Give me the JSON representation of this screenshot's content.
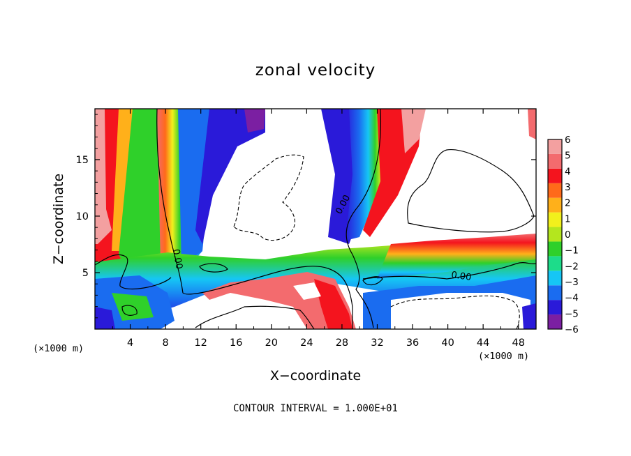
{
  "chart_data": {
    "type": "heatmap",
    "title": "zonal velocity",
    "xlabel": "X−coordinate",
    "ylabel": "Z−coordinate",
    "x_unit_label": "(×1000 m)",
    "x_ticks": [
      "4",
      "8",
      "12",
      "16",
      "20",
      "24",
      "28",
      "32",
      "36",
      "40",
      "44",
      "48"
    ],
    "y_ticks": [
      "5",
      "10",
      "15"
    ],
    "xlim": [
      0,
      50
    ],
    "ylim": [
      0,
      19.5
    ],
    "colorbar": {
      "ticks": [
        "6",
        "5",
        "4",
        "3",
        "2",
        "1",
        "0",
        "−1",
        "−2",
        "−3",
        "−4",
        "−5",
        "−6"
      ],
      "range": [
        -6,
        6
      ],
      "colors": [
        "#7b1fa2",
        "#2a1ad9",
        "#1a6cf0",
        "#16c6f5",
        "#1ddc8a",
        "#2fd02a",
        "#b4e61e",
        "#f2f01c",
        "#ffb01a",
        "#ff6a1a",
        "#f4141e",
        "#f36b6e",
        "#f3a0a0"
      ]
    },
    "contour_label": "0.00",
    "footnote": "CONTOUR INTERVAL = 1.000E+01"
  }
}
